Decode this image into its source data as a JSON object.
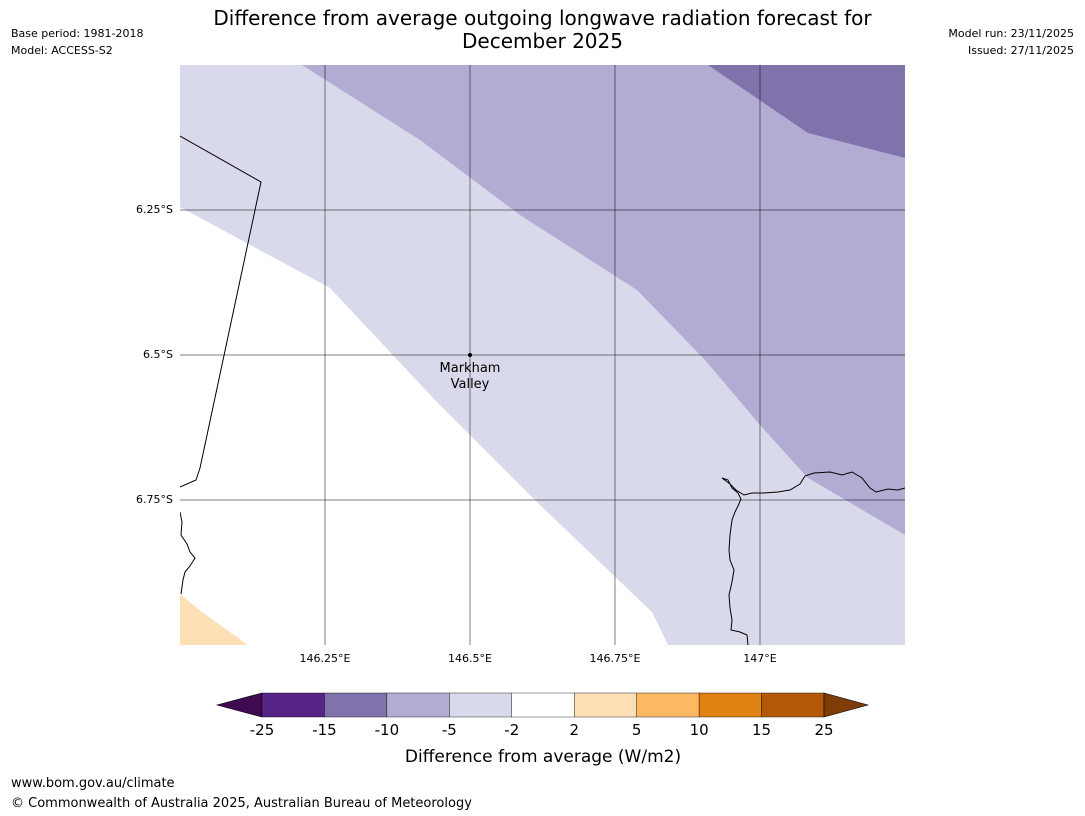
{
  "title": {
    "line1": "Difference from average outgoing longwave radiation forecast for",
    "line2": "December 2025"
  },
  "meta_left": {
    "base_period": "Base period: 1981-2018",
    "model": "Model: ACCESS-S2"
  },
  "meta_right": {
    "model_run": "Model run: 23/11/2025",
    "issued": "Issued: 27/11/2025"
  },
  "map": {
    "lat_labels": [
      "6.25°S",
      "6.5°S",
      "6.75°S"
    ],
    "lon_labels": [
      "146.25°E",
      "146.5°E",
      "146.75°E",
      "147°E"
    ],
    "place": {
      "name_line1": "Markham",
      "name_line2": "Valley",
      "lat": -6.5,
      "lon": 146.5
    }
  },
  "colorbar": {
    "title": "Difference from average (W/m2)",
    "ticks": [
      "-25",
      "-15",
      "-10",
      "-5",
      "-2",
      "2",
      "5",
      "10",
      "15",
      "25"
    ],
    "bins": [
      {
        "range": "below -25",
        "color": "#3f0a51"
      },
      {
        "range": "-25 to -15",
        "color": "#562487"
      },
      {
        "range": "-15 to -10",
        "color": "#8073ac"
      },
      {
        "range": "-10 to -5",
        "color": "#b2abd2"
      },
      {
        "range": "-5 to -2",
        "color": "#d8daeb"
      },
      {
        "range": "-2 to 2",
        "color": "#ffffff"
      },
      {
        "range": "2 to 5",
        "color": "#fee0b6"
      },
      {
        "range": "5 to 10",
        "color": "#fdb863"
      },
      {
        "range": "10 to 15",
        "color": "#e08214"
      },
      {
        "range": "15 to 25",
        "color": "#b35806"
      },
      {
        "range": "above 25",
        "color": "#7f3b08"
      }
    ]
  },
  "footer": {
    "url": "www.bom.gov.au/climate",
    "copyright": "© Commonwealth of Australia 2025, Australian Bureau of Meteorology"
  }
}
